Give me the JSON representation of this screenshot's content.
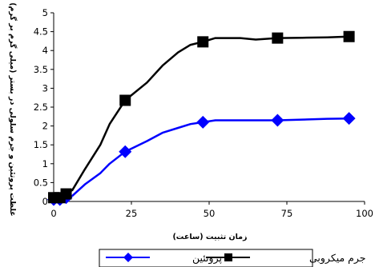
{
  "chart_data": {
    "type": "line",
    "title": "",
    "xlabel": "زمان تثبیت (ساعت)",
    "ylabel": "غلظت پروتئین و جرم سلولی در بستر (میلی گرم بر گرم)",
    "xlim": [
      0,
      100
    ],
    "ylim": [
      0,
      5
    ],
    "xticks": [
      "0",
      "25",
      "50",
      "75",
      "100"
    ],
    "yticks": [
      "0",
      "0.5",
      "1",
      "1.5",
      "2",
      "2.5",
      "3",
      "3.5",
      "4",
      "4.5",
      "5"
    ],
    "grid": false,
    "legend_position": "bottom",
    "series": [
      {
        "name": "پروتئین",
        "color": "#0000ff",
        "marker": "diamond",
        "curve": [
          [
            0,
            0.02
          ],
          [
            2,
            0.05
          ],
          [
            4,
            0.08
          ],
          [
            6,
            0.15
          ],
          [
            10,
            0.45
          ],
          [
            15,
            0.75
          ],
          [
            18,
            1.0
          ],
          [
            23,
            1.32
          ],
          [
            30,
            1.6
          ],
          [
            35,
            1.82
          ],
          [
            40,
            1.95
          ],
          [
            44,
            2.05
          ],
          [
            48,
            2.1
          ],
          [
            52,
            2.15
          ],
          [
            60,
            2.15
          ],
          [
            72,
            2.15
          ],
          [
            80,
            2.17
          ],
          [
            88,
            2.19
          ],
          [
            95,
            2.2
          ]
        ],
        "points": [
          [
            0,
            0.05
          ],
          [
            2,
            0.05
          ],
          [
            4,
            0.1
          ],
          [
            23,
            1.32
          ],
          [
            48,
            2.1
          ],
          [
            72,
            2.15
          ],
          [
            95,
            2.2
          ]
        ]
      },
      {
        "name": "جرم میکروبی",
        "color": "#000000",
        "marker": "square",
        "curve": [
          [
            0,
            0.05
          ],
          [
            2,
            0.1
          ],
          [
            4,
            0.2
          ],
          [
            6,
            0.3
          ],
          [
            10,
            0.85
          ],
          [
            15,
            1.5
          ],
          [
            18,
            2.05
          ],
          [
            23,
            2.68
          ],
          [
            30,
            3.15
          ],
          [
            35,
            3.6
          ],
          [
            40,
            3.95
          ],
          [
            44,
            4.15
          ],
          [
            48,
            4.23
          ],
          [
            52,
            4.33
          ],
          [
            60,
            4.33
          ],
          [
            65,
            4.29
          ],
          [
            72,
            4.33
          ],
          [
            80,
            4.34
          ],
          [
            88,
            4.35
          ],
          [
            95,
            4.37
          ]
        ],
        "points": [
          [
            0,
            0.1
          ],
          [
            2,
            0.1
          ],
          [
            4,
            0.2
          ],
          [
            23,
            2.68
          ],
          [
            48,
            4.23
          ],
          [
            72,
            4.33
          ],
          [
            95,
            4.37
          ]
        ]
      }
    ]
  }
}
